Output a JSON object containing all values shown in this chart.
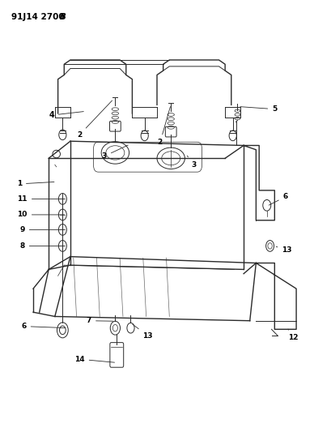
{
  "title_main": "91J14 2700 ",
  "title_bold": "B",
  "background_color": "#ffffff",
  "line_color": "#2a2a2a",
  "label_color": "#000000",
  "figsize": [
    3.88,
    5.33
  ],
  "dpi": 100
}
